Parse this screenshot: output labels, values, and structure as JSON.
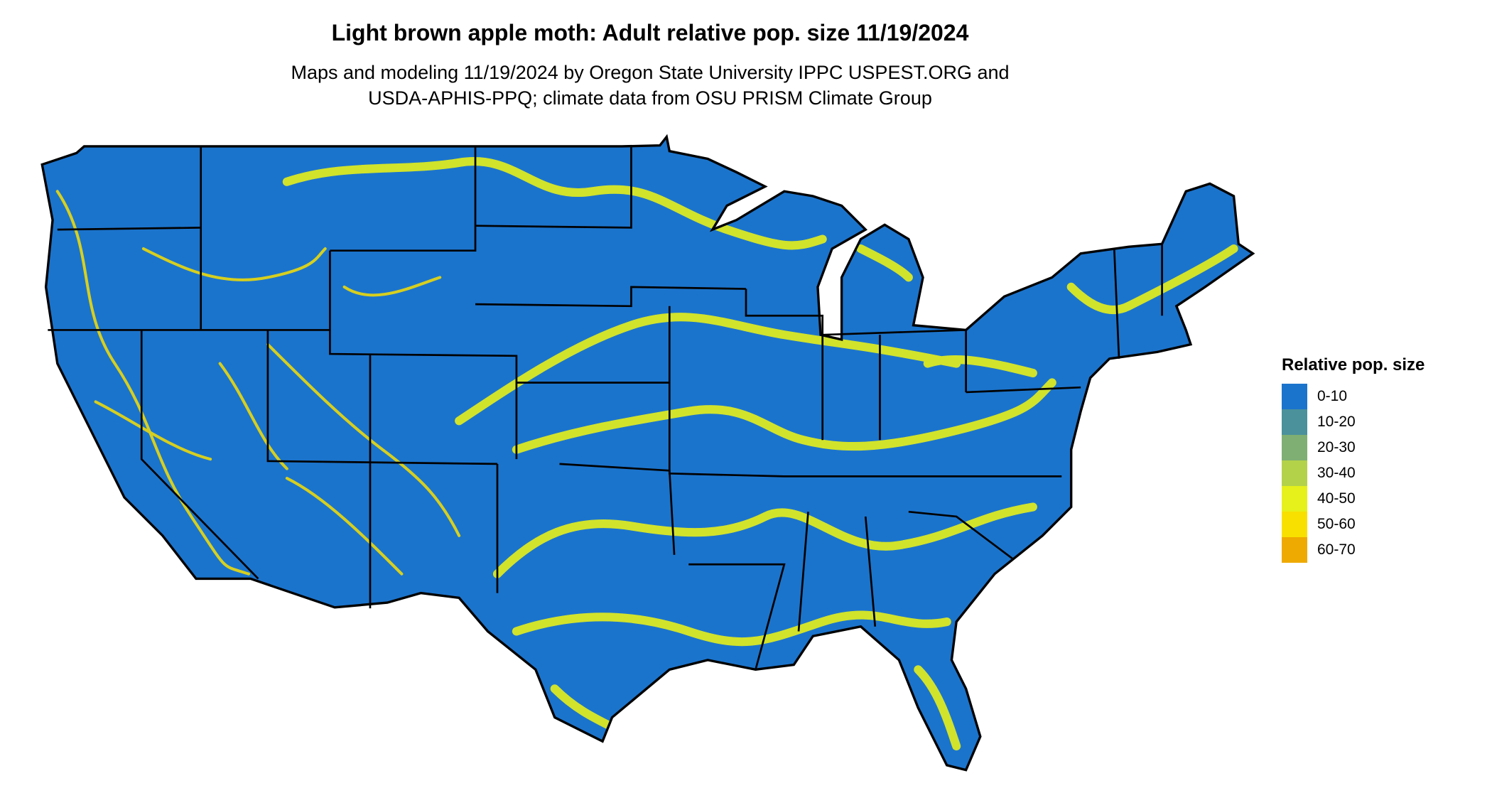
{
  "title": "Light brown apple moth: Adult relative pop. size 11/19/2024",
  "subtitle_line1": "Maps and modeling 11/19/2024 by Oregon State University IPPC USPEST.ORG and",
  "subtitle_line2": "USDA-APHIS-PPQ; climate data from OSU PRISM Climate Group",
  "legend": {
    "title": "Relative pop. size",
    "items": [
      {
        "label": "0-10",
        "color": "#1b74cc"
      },
      {
        "label": "10-20",
        "color": "#4a919b"
      },
      {
        "label": "20-30",
        "color": "#7faf72"
      },
      {
        "label": "30-40",
        "color": "#b3d24a"
      },
      {
        "label": "40-50",
        "color": "#e6f01a"
      },
      {
        "label": "50-60",
        "color": "#f8e000"
      },
      {
        "label": "60-70",
        "color": "#eeaa00"
      }
    ]
  }
}
